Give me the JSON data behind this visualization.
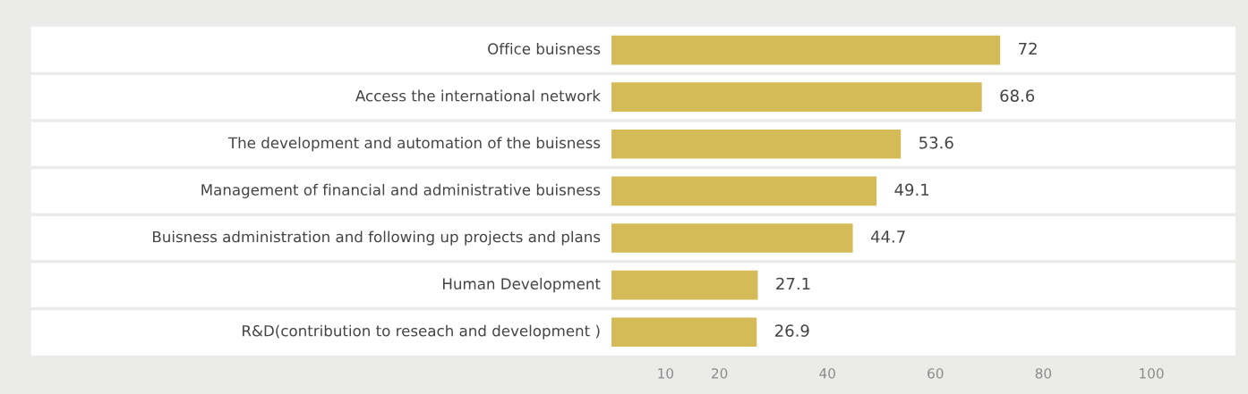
{
  "chart_data": {
    "type": "bar",
    "orientation": "horizontal",
    "categories": [
      "Office buisness",
      "Access the international network",
      "The development and automation of the buisness",
      "Management of financial and administrative buisness",
      "Buisness administration and following up projects and plans",
      "Human Development",
      "R&D(contribution to reseach and development )"
    ],
    "values": [
      72,
      68.6,
      53.6,
      49.1,
      44.7,
      27.1,
      26.9
    ],
    "color": "#d4bb57",
    "data_labels": true,
    "xlim": [
      -107.5,
      115.6
    ],
    "xticks": [
      10,
      20,
      40,
      60,
      80,
      100
    ],
    "grid": false,
    "legend": false
  }
}
